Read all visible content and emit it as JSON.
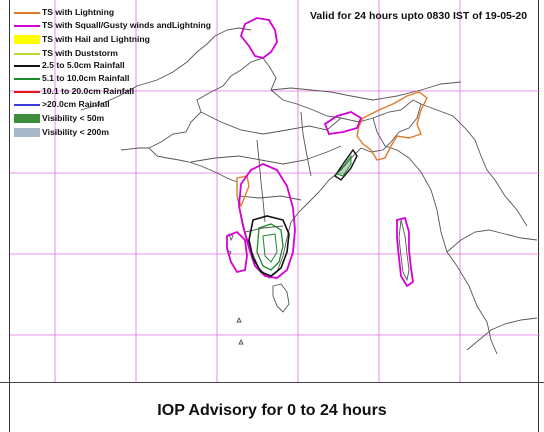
{
  "validity_text": "Valid for 24 hours upto 0830 IST of 19-05-20",
  "legend": [
    {
      "label": "TS with Lightning",
      "color": "#e07b2c",
      "style": "line"
    },
    {
      "label": "TS with Squall/Gusty winds andLightning",
      "color": "#d400d4",
      "style": "line"
    },
    {
      "label": "TS with Hail and Lightning",
      "color": "#ffff00",
      "style": "box"
    },
    {
      "label": "TS with Duststorm",
      "color": "#b8d832",
      "style": "line"
    },
    {
      "label": "2.5 to 5.0cm Rainfall",
      "color": "#111111",
      "style": "line"
    },
    {
      "label": "5.1 to 10.0cm Rainfall",
      "color": "#1a8a2a",
      "style": "line"
    },
    {
      "label": "10.1 to 20.0cm Rainfall",
      "color": "#e01818",
      "style": "line"
    },
    {
      "label": ">20.0cm Rainfall",
      "color": "#3a3ad8",
      "style": "line"
    },
    {
      "label": "Visibility < 50m",
      "color": "#3c8c3c",
      "style": "box"
    },
    {
      "label": "Visibility < 200m",
      "color": "#a8b8c8",
      "style": "box"
    }
  ],
  "footer_title": "IOP Advisory for 0 to 24 hours",
  "grid_color": "#e070e0",
  "land_outline_color": "#555555"
}
